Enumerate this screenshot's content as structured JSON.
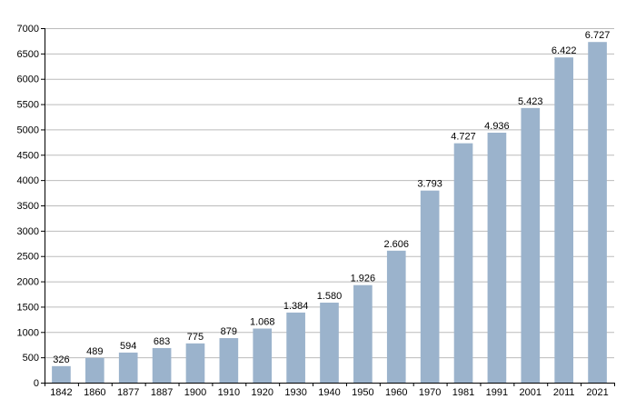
{
  "chart_data": {
    "type": "bar",
    "title": "",
    "xlabel": "",
    "ylabel": "",
    "categories": [
      "1842",
      "1860",
      "1877",
      "1887",
      "1900",
      "1910",
      "1920",
      "1930",
      "1940",
      "1950",
      "1960",
      "1970",
      "1981",
      "1991",
      "2001",
      "2011",
      "2021"
    ],
    "values": [
      326,
      489,
      594,
      683,
      775,
      879,
      1068,
      1384,
      1580,
      1926,
      2606,
      3793,
      4727,
      4936,
      5423,
      6422,
      6727
    ],
    "value_labels": [
      "326",
      "489",
      "594",
      "683",
      "775",
      "879",
      "1.068",
      "1.384",
      "1.580",
      "1.926",
      "2.606",
      "3.793",
      "4.727",
      "4.936",
      "5.423",
      "6.422",
      "6.727"
    ],
    "ylim": [
      0,
      7000
    ],
    "yticks": [
      0,
      500,
      1000,
      1500,
      2000,
      2500,
      3000,
      3500,
      4000,
      4500,
      5000,
      5500,
      6000,
      6500,
      7000
    ],
    "grid": true,
    "legend": "none",
    "colors": {
      "bar": "#9bb3cc",
      "grid": "#bbbbbb",
      "axis": "#000000"
    }
  }
}
